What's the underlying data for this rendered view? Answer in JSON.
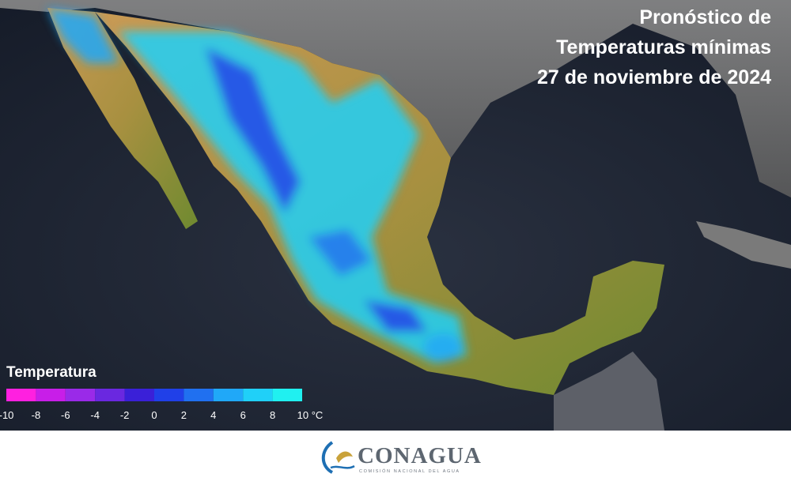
{
  "map": {
    "title": [
      "Pronóstico de",
      "Temperaturas mínimas",
      "27 de noviembre de 2024"
    ],
    "legend": {
      "title": "Temperatura",
      "ticks": [
        -10,
        -8,
        -6,
        -4,
        -2,
        0,
        2,
        4,
        6,
        8,
        {
          "value": 10,
          "label": "10 °C"
        }
      ],
      "colors": [
        "#ff20e0",
        "#c81ee8",
        "#9a2ae8",
        "#6a28e0",
        "#3a20d8",
        "#2040e8",
        "#2070f0",
        "#20a8f8",
        "#20d0f8",
        "#20f0f0"
      ]
    },
    "footer": {
      "logo": "CONAGUA",
      "subtitle": "COMISIÓN NACIONAL DEL AGUA"
    }
  }
}
